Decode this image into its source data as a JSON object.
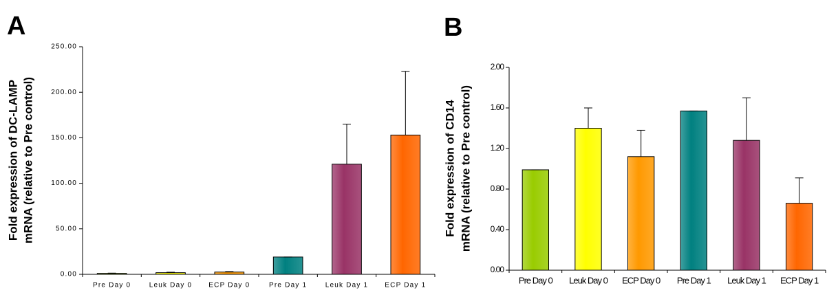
{
  "chart_data": [
    {
      "type": "bar",
      "title": "A",
      "ylabel": [
        "Fold expression of DC-LAMP",
        "mRNA (relative to Pre control)"
      ],
      "categories": [
        "Pre Day 0",
        "Leuk Day 0",
        "ECP Day 0",
        "Pre Day 1",
        "Leuk Day 1",
        "ECP Day 1"
      ],
      "values": [
        1,
        1.8,
        2.5,
        19,
        121,
        153
      ],
      "errors": [
        0.3,
        0.5,
        0.5,
        0,
        44,
        70
      ],
      "colors": [
        "#99cc00",
        "#ffff00",
        "#ff9900",
        "#008080",
        "#993366",
        "#ff6600"
      ],
      "ylim": [
        0,
        250
      ],
      "yticks": [
        {
          "value": 0,
          "label": "0.00"
        },
        {
          "value": 50,
          "label": "50.00"
        },
        {
          "value": 100,
          "label": "100.00"
        },
        {
          "value": 150,
          "label": "150.00"
        },
        {
          "value": 200,
          "label": "200.00"
        },
        {
          "value": 250,
          "label": "250.00"
        }
      ]
    },
    {
      "type": "bar",
      "title": "B",
      "ylabel": [
        "Fold expression of CD14",
        "mRNA (relative to Pre control)"
      ],
      "categories": [
        "Pre Day 0",
        "Leuk Day 0",
        "ECP Day 0",
        "Pre Day 1",
        "Leuk Day 1",
        "ECP Day 1"
      ],
      "values": [
        0.99,
        1.4,
        1.12,
        1.57,
        1.28,
        0.66
      ],
      "errors": [
        0,
        0.2,
        0.26,
        0,
        0.42,
        0.25
      ],
      "colors": [
        "#99cc00",
        "#ffff00",
        "#ff9900",
        "#008080",
        "#993366",
        "#ff6600"
      ],
      "ylim": [
        0,
        2
      ],
      "yticks": [
        {
          "value": 0,
          "label": "0.00"
        },
        {
          "value": 0.4,
          "label": "0.40"
        },
        {
          "value": 0.8,
          "label": "0.80"
        },
        {
          "value": 1.2,
          "label": "1.20"
        },
        {
          "value": 1.6,
          "label": "1.60"
        },
        {
          "value": 2,
          "label": "2.00"
        }
      ]
    }
  ]
}
